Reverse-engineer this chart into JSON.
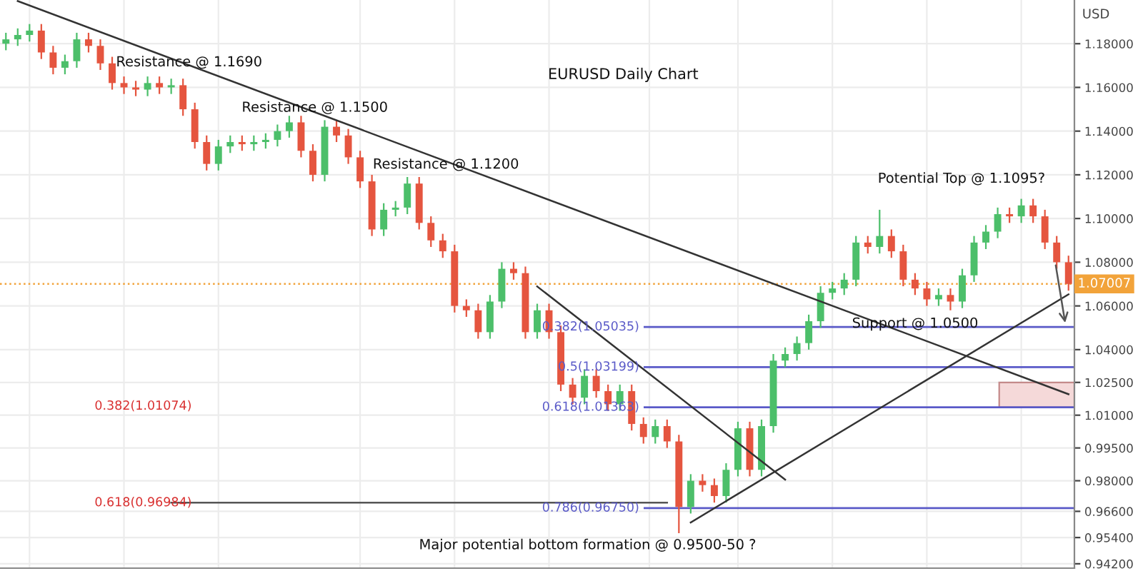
{
  "chart_data": {
    "type": "candlestick",
    "title": "EURUSD Daily Chart",
    "ylabel": "USD",
    "categories": [
      null,
      null,
      null,
      null,
      null,
      null,
      null,
      null,
      null,
      null,
      null,
      null,
      null,
      null,
      null,
      null,
      null,
      null,
      null,
      null,
      null,
      null,
      null,
      null,
      null,
      null,
      null,
      null,
      null,
      null,
      null,
      null,
      null,
      null,
      null,
      null,
      null,
      null,
      null,
      null,
      null,
      null,
      null,
      null,
      null,
      null,
      null,
      null,
      null,
      null,
      null,
      null,
      null,
      null,
      null,
      null,
      null,
      null,
      null,
      null,
      null,
      null,
      null,
      null,
      null,
      null,
      null,
      null,
      null,
      null,
      null,
      null,
      null,
      null,
      null,
      null,
      null,
      null,
      null,
      null,
      null,
      null,
      null,
      null,
      null,
      null,
      null,
      null,
      null,
      null,
      null
    ],
    "colors": [
      "#4cbf6a",
      "#4cbf6a",
      "#4cbf6a",
      "#e5553f",
      "#e5553f",
      "#4cbf6a",
      "#4cbf6a",
      "#e5553f",
      "#e5553f",
      "#e5553f",
      "#e5553f",
      "#e5553f",
      "#4cbf6a",
      "#e5553f",
      "#4cbf6a",
      "#e5553f",
      "#e5553f",
      "#e5553f",
      "#4cbf6a",
      "#4cbf6a",
      "#e5553f",
      "#4cbf6a",
      "#4cbf6a",
      "#4cbf6a",
      "#4cbf6a",
      "#e5553f",
      "#e5553f",
      "#4cbf6a",
      "#e5553f",
      "#e5553f",
      "#e5553f",
      "#e5553f",
      "#4cbf6a",
      "#4cbf6a",
      "#4cbf6a",
      "#e5553f",
      "#e5553f",
      "#e5553f",
      "#e5553f",
      "#e5553f",
      "#e5553f",
      "#4cbf6a",
      "#4cbf6a",
      "#e5553f",
      "#e5553f",
      "#4cbf6a",
      "#e5553f",
      "#e5553f",
      "#e5553f",
      "#4cbf6a",
      "#e5553f",
      "#e5553f",
      "#4cbf6a",
      "#e5553f",
      "#e5553f",
      "#4cbf6a",
      "#e5553f",
      "#e5553f",
      "#4cbf6a",
      "#e5553f",
      "#e5553f",
      "#4cbf6a",
      "#4cbf6a",
      "#e5553f",
      "#4cbf6a",
      "#4cbf6a",
      "#4cbf6a",
      "#4cbf6a",
      "#4cbf6a",
      "#4cbf6a",
      "#4cbf6a",
      "#4cbf6a",
      "#4cbf6a",
      "#e5553f",
      "#4cbf6a",
      "#e5553f",
      "#e5553f",
      "#e5553f",
      "#e5553f",
      "#4cbf6a",
      "#e5553f",
      "#4cbf6a",
      "#4cbf6a",
      "#4cbf6a",
      "#4cbf6a",
      "#e5553f",
      "#4cbf6a",
      "#e5553f",
      "#e5553f",
      "#e5553f",
      "#e5553f"
    ],
    "ohlc": [
      [
        1.18,
        1.185,
        1.177,
        1.182
      ],
      [
        1.182,
        1.187,
        1.179,
        1.184
      ],
      [
        1.184,
        1.189,
        1.181,
        1.186
      ],
      [
        1.186,
        1.189,
        1.173,
        1.176
      ],
      [
        1.176,
        1.179,
        1.166,
        1.169
      ],
      [
        1.169,
        1.175,
        1.166,
        1.172
      ],
      [
        1.172,
        1.185,
        1.169,
        1.182
      ],
      [
        1.182,
        1.185,
        1.176,
        1.179
      ],
      [
        1.179,
        1.182,
        1.168,
        1.171
      ],
      [
        1.171,
        1.174,
        1.159,
        1.162
      ],
      [
        1.162,
        1.165,
        1.157,
        1.16
      ],
      [
        1.16,
        1.163,
        1.156,
        1.159
      ],
      [
        1.159,
        1.165,
        1.156,
        1.162
      ],
      [
        1.162,
        1.165,
        1.157,
        1.16
      ],
      [
        1.16,
        1.164,
        1.157,
        1.161
      ],
      [
        1.161,
        1.164,
        1.147,
        1.15
      ],
      [
        1.15,
        1.153,
        1.132,
        1.135
      ],
      [
        1.135,
        1.138,
        1.122,
        1.125
      ],
      [
        1.125,
        1.136,
        1.122,
        1.133
      ],
      [
        1.133,
        1.138,
        1.13,
        1.135
      ],
      [
        1.135,
        1.138,
        1.131,
        1.134
      ],
      [
        1.134,
        1.138,
        1.131,
        1.135
      ],
      [
        1.135,
        1.139,
        1.132,
        1.136
      ],
      [
        1.136,
        1.143,
        1.133,
        1.14
      ],
      [
        1.14,
        1.147,
        1.137,
        1.144
      ],
      [
        1.144,
        1.147,
        1.128,
        1.131
      ],
      [
        1.131,
        1.134,
        1.117,
        1.12
      ],
      [
        1.12,
        1.145,
        1.117,
        1.142
      ],
      [
        1.142,
        1.145,
        1.135,
        1.138
      ],
      [
        1.138,
        1.141,
        1.125,
        1.128
      ],
      [
        1.128,
        1.131,
        1.114,
        1.117
      ],
      [
        1.117,
        1.12,
        1.092,
        1.095
      ],
      [
        1.095,
        1.107,
        1.092,
        1.104
      ],
      [
        1.104,
        1.108,
        1.101,
        1.105
      ],
      [
        1.105,
        1.119,
        1.102,
        1.116
      ],
      [
        1.116,
        1.119,
        1.095,
        1.098
      ],
      [
        1.098,
        1.101,
        1.087,
        1.09
      ],
      [
        1.09,
        1.093,
        1.082,
        1.085
      ],
      [
        1.085,
        1.088,
        1.057,
        1.06
      ],
      [
        1.06,
        1.063,
        1.055,
        1.058
      ],
      [
        1.058,
        1.061,
        1.045,
        1.048
      ],
      [
        1.048,
        1.065,
        1.045,
        1.062
      ],
      [
        1.062,
        1.08,
        1.059,
        1.077
      ],
      [
        1.077,
        1.08,
        1.072,
        1.075
      ],
      [
        1.075,
        1.078,
        1.045,
        1.048
      ],
      [
        1.048,
        1.061,
        1.045,
        1.058
      ],
      [
        1.058,
        1.061,
        1.045,
        1.048
      ],
      [
        1.048,
        1.051,
        1.021,
        1.024
      ],
      [
        1.024,
        1.027,
        1.015,
        1.018
      ],
      [
        1.018,
        1.031,
        1.015,
        1.028
      ],
      [
        1.028,
        1.031,
        1.018,
        1.021
      ],
      [
        1.021,
        1.024,
        1.012,
        1.015
      ],
      [
        1.015,
        1.024,
        1.012,
        1.021
      ],
      [
        1.021,
        1.024,
        1.003,
        1.006
      ],
      [
        1.006,
        1.009,
        0.997,
        1.0
      ],
      [
        1.0,
        1.008,
        0.997,
        1.005
      ],
      [
        1.005,
        1.008,
        0.995,
        0.998
      ],
      [
        0.998,
        1.001,
        0.956,
        0.968
      ],
      [
        0.968,
        0.983,
        0.965,
        0.98
      ],
      [
        0.98,
        0.983,
        0.975,
        0.978
      ],
      [
        0.978,
        0.981,
        0.97,
        0.973
      ],
      [
        0.973,
        0.988,
        0.97,
        0.985
      ],
      [
        0.985,
        1.007,
        0.982,
        1.004
      ],
      [
        1.004,
        1.007,
        0.982,
        0.985
      ],
      [
        0.985,
        1.008,
        0.982,
        1.005
      ],
      [
        1.005,
        1.038,
        1.002,
        1.035
      ],
      [
        1.035,
        1.041,
        1.032,
        1.038
      ],
      [
        1.038,
        1.046,
        1.035,
        1.043
      ],
      [
        1.043,
        1.056,
        1.04,
        1.053
      ],
      [
        1.053,
        1.069,
        1.05,
        1.066
      ],
      [
        1.066,
        1.071,
        1.063,
        1.068
      ],
      [
        1.068,
        1.075,
        1.065,
        1.072
      ],
      [
        1.072,
        1.092,
        1.069,
        1.089
      ],
      [
        1.089,
        1.092,
        1.084,
        1.087
      ],
      [
        1.087,
        1.104,
        1.084,
        1.092
      ],
      [
        1.092,
        1.095,
        1.082,
        1.085
      ],
      [
        1.085,
        1.088,
        1.069,
        1.072
      ],
      [
        1.072,
        1.075,
        1.065,
        1.068
      ],
      [
        1.068,
        1.071,
        1.06,
        1.063
      ],
      [
        1.063,
        1.068,
        1.06,
        1.065
      ],
      [
        1.065,
        1.068,
        1.058,
        1.062
      ],
      [
        1.062,
        1.077,
        1.059,
        1.074
      ],
      [
        1.074,
        1.092,
        1.071,
        1.089
      ],
      [
        1.089,
        1.097,
        1.086,
        1.094
      ],
      [
        1.094,
        1.105,
        1.091,
        1.102
      ],
      [
        1.102,
        1.105,
        1.098,
        1.101
      ],
      [
        1.101,
        1.109,
        1.098,
        1.106
      ],
      [
        1.106,
        1.109,
        1.098,
        1.101
      ],
      [
        1.101,
        1.104,
        1.086,
        1.089
      ],
      [
        1.089,
        1.092,
        1.077,
        1.08
      ],
      [
        1.08,
        1.083,
        1.067,
        1.07007
      ]
    ],
    "series": [
      {
        "type": "line",
        "color": "#333333",
        "values": [
          null,
          1.1995,
          null,
          null,
          null,
          null,
          null,
          null,
          null,
          null,
          null,
          null,
          null,
          null,
          null,
          null,
          null,
          null,
          null,
          null,
          null,
          null,
          null,
          null,
          null,
          null,
          null,
          null,
          null,
          null,
          null,
          null,
          null,
          null,
          null,
          null,
          null,
          null,
          null,
          null,
          null,
          null,
          null,
          null,
          null,
          null,
          null,
          null,
          null,
          null,
          null,
          null,
          null,
          null,
          null,
          null,
          null,
          null,
          null,
          null,
          null,
          null,
          null,
          null,
          null,
          null,
          null,
          null,
          null,
          null,
          null,
          null,
          null,
          null,
          null,
          null,
          null,
          null,
          null,
          null,
          null,
          null,
          null,
          null,
          null,
          null,
          null,
          null,
          null,
          null,
          1.0196
        ]
      },
      {
        "type": "line",
        "color": "#333333",
        "values": [
          null,
          null,
          null,
          null,
          null,
          null,
          null,
          null,
          null,
          null,
          null,
          null,
          null,
          null,
          null,
          null,
          null,
          null,
          null,
          null,
          null,
          null,
          null,
          null,
          null,
          null,
          null,
          null,
          null,
          null,
          null,
          null,
          null,
          null,
          null,
          null,
          null,
          null,
          null,
          null,
          null,
          null,
          null,
          null,
          null,
          1.0689,
          null,
          null,
          null,
          null,
          null,
          null,
          null,
          null,
          null,
          null,
          null,
          null,
          null,
          null,
          null,
          null,
          null,
          null,
          null,
          null,
          0.9805,
          null,
          null,
          null,
          null,
          null,
          null,
          null,
          null,
          null,
          null,
          null,
          null,
          null,
          null,
          null,
          null,
          null,
          null,
          null,
          null,
          null,
          null,
          null,
          null
        ]
      },
      {
        "type": "line",
        "color": "#333333",
        "values": [
          null,
          null,
          null,
          null,
          null,
          null,
          null,
          null,
          null,
          null,
          null,
          null,
          null,
          null,
          null,
          null,
          null,
          null,
          null,
          null,
          null,
          null,
          null,
          null,
          null,
          null,
          null,
          null,
          null,
          null,
          null,
          null,
          null,
          null,
          null,
          null,
          null,
          null,
          null,
          null,
          null,
          null,
          null,
          null,
          null,
          null,
          null,
          null,
          null,
          null,
          null,
          null,
          null,
          null,
          null,
          null,
          null,
          null,
          0.9609,
          null,
          null,
          null,
          null,
          null,
          null,
          null,
          null,
          null,
          null,
          null,
          null,
          null,
          null,
          null,
          null,
          null,
          null,
          null,
          null,
          null,
          null,
          null,
          null,
          null,
          null,
          null,
          null,
          null,
          null,
          null,
          1.0653
        ]
      },
      {
        "type": "line",
        "color": "#555555",
        "values": [
          null,
          null,
          null,
          null,
          null,
          null,
          null,
          null,
          null,
          null,
          null,
          null,
          null,
          null,
          0.97,
          null,
          null,
          null,
          null,
          null,
          null,
          null,
          null,
          null,
          null,
          null,
          null,
          null,
          null,
          null,
          null,
          null,
          null,
          null,
          null,
          null,
          null,
          null,
          null,
          null,
          null,
          null,
          null,
          null,
          null,
          null,
          null,
          null,
          null,
          null,
          null,
          null,
          null,
          null,
          null,
          null,
          0.97,
          null,
          null,
          null,
          null,
          null,
          null,
          null,
          null,
          null,
          null,
          null,
          null,
          null,
          null,
          null,
          null,
          null,
          null,
          null,
          null,
          null,
          null,
          null,
          null,
          null,
          null,
          null,
          null,
          null,
          null,
          null,
          null,
          null,
          null
        ]
      }
    ],
    "ref_lines": [
      {
        "axis": "y",
        "value": 1.05035,
        "label": "0.382(1.05035)",
        "color": "#5a5ac8",
        "line_style": "solid"
      },
      {
        "axis": "y",
        "value": 1.03199,
        "label": "0.5(1.03199)",
        "color": "#5a5ac8",
        "line_style": "solid"
      },
      {
        "axis": "y",
        "value": 1.01363,
        "label": "0.618(1.01363)",
        "color": "#5a5ac8",
        "line_style": "solid"
      },
      {
        "axis": "y",
        "value": 0.9675,
        "label": "0.786(0.96750)",
        "color": "#5a5ac8",
        "line_style": "solid"
      },
      {
        "axis": "y",
        "value": 1.07007,
        "label": "1.07007",
        "color": "#f2a33a",
        "line_style": "dotted"
      }
    ],
    "bands": [
      {
        "axis": "y",
        "from": 1.01363,
        "to": 1.025,
        "color": "#f5d9d9"
      }
    ],
    "annotations": [
      "Resistance @ 1.1690",
      "Resistance @ 1.1500",
      "Resistance @ 1.1200",
      "Potential Top @ 1.1095?",
      "Support @ 1.0500",
      "Major potential bottom formation @ 0.9500-50 ?",
      "0.382(1.01074)",
      "0.618(0.96984)"
    ],
    "ylim": [
      0.94,
      1.2
    ],
    "yticks": [
      {
        "value": 0.942,
        "label": "0.94200"
      },
      {
        "value": 0.954,
        "label": "0.95400"
      },
      {
        "value": 0.966,
        "label": "0.96600"
      },
      {
        "value": 0.98,
        "label": "0.98000"
      },
      {
        "value": 0.995,
        "label": "0.99500"
      },
      {
        "value": 1.01,
        "label": "1.01000"
      },
      {
        "value": 1.025,
        "label": "1.02500"
      },
      {
        "value": 1.04,
        "label": "1.04000"
      },
      {
        "value": 1.06,
        "label": "1.06000"
      },
      {
        "value": 1.08,
        "label": "1.08000"
      },
      {
        "value": 1.1,
        "label": "1.10000"
      },
      {
        "value": 1.12,
        "label": "1.12000"
      },
      {
        "value": 1.14,
        "label": "1.14000"
      },
      {
        "value": 1.16,
        "label": "1.16000"
      },
      {
        "value": 1.18,
        "label": "1.18000"
      }
    ],
    "grid": true,
    "tick_labels": "y"
  }
}
